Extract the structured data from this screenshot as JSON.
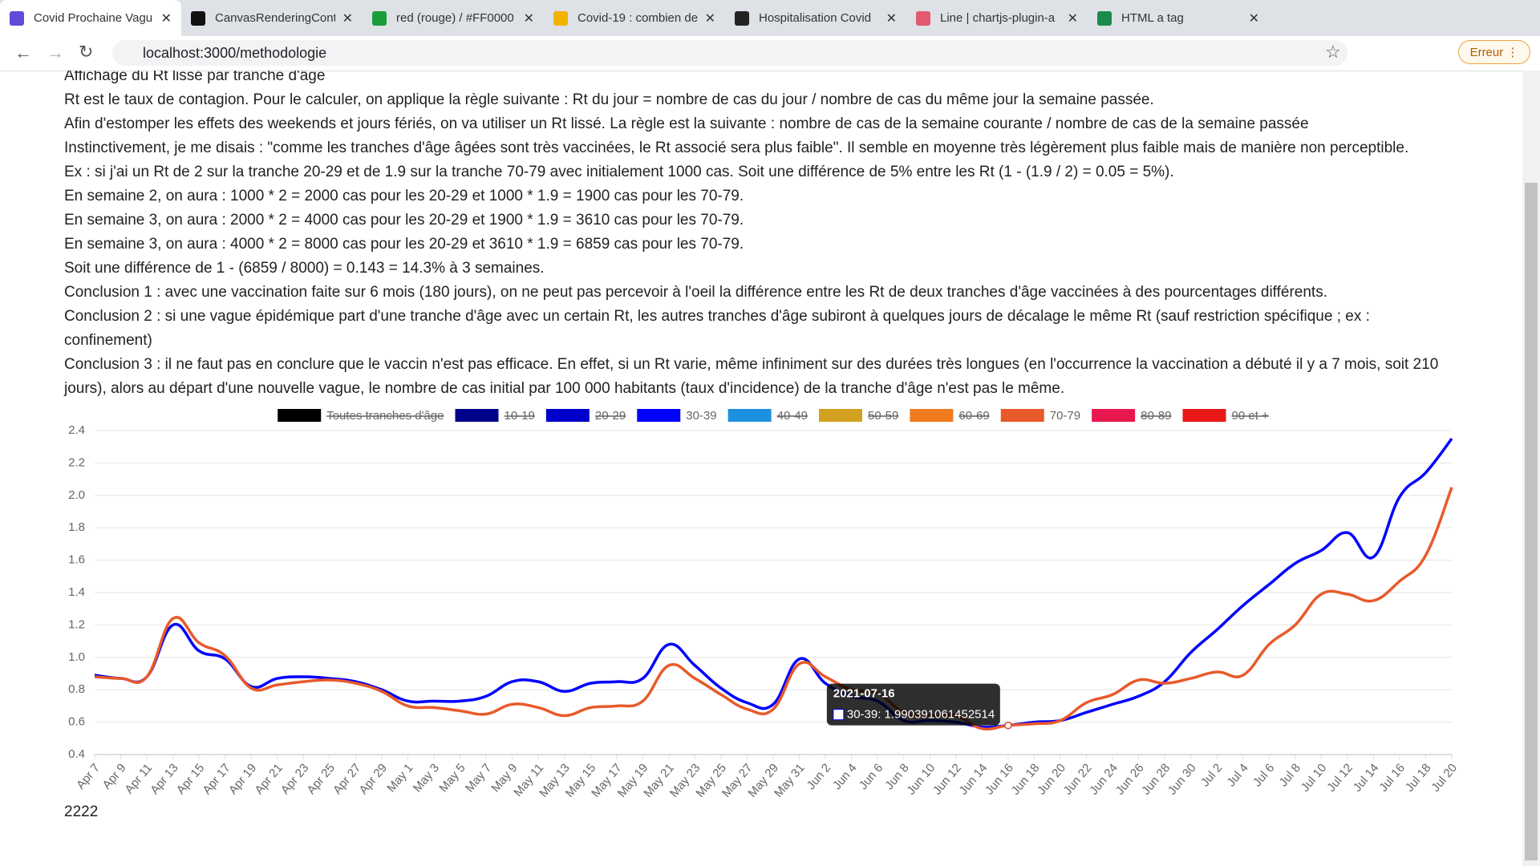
{
  "tabs": [
    "Covid Prochaine Vagu",
    "CanvasRenderingCont",
    "red (rouge) / #FF0000",
    "Covid-19 : combien de",
    "Hospitalisation Covid",
    "Line | chartjs-plugin-a",
    "HTML a tag"
  ],
  "address": "localhost:3000/methodologie",
  "profile_button": "Erreur",
  "paragraphs": [
    "Affichage du Rt lissé par tranche d'âge",
    "Rt est le taux de contagion. Pour le calculer, on applique la règle suivante : Rt du jour = nombre de cas du jour / nombre de cas du même jour la semaine passée.",
    "Afin d'estomper les effets des weekends et jours fériés, on va utiliser un Rt lissé. La règle est la suivante : nombre de cas de la semaine courante / nombre de cas de la semaine passée",
    "Instinctivement, je me disais : \"comme les tranches d'âge âgées sont très vaccinées, le Rt associé sera plus faible\". Il semble en moyenne très légèrement plus faible mais de manière non perceptible.",
    "Ex : si j'ai un Rt de 2 sur la tranche 20-29 et de 1.9 sur la tranche 70-79 avec initialement 1000 cas. Soit une différence de 5% entre les Rt (1 - (1.9 / 2) = 0.05 = 5%).",
    "En semaine 2, on aura : 1000 * 2 = 2000 cas pour les 20-29 et 1000 * 1.9 = 1900 cas pour les 70-79.",
    "En semaine 3, on aura : 2000 * 2 = 4000 cas pour les 20-29 et 1900 * 1.9 = 3610 cas pour les 70-79.",
    "En semaine 3, on aura : 4000 * 2 = 8000 cas pour les 20-29 et 3610 * 1.9 = 6859 cas pour les 70-79.",
    "Soit une différence de 1 - (6859 / 8000) = 0.143 = 14.3% à 3 semaines.",
    "Conclusion 1 : avec une vaccination faite sur 6 mois (180 jours), on ne peut pas percevoir à l'oeil la différence entre les Rt de deux tranches d'âge vaccinées à des pourcentages différents.",
    "Conclusion 2 : si une vague épidémique part d'une tranche d'âge avec un certain Rt, les autres tranches d'âge subiront à quelques jours de décalage le même Rt (sauf restriction spécifique ; ex : confinement)",
    "Conclusion 3 : il ne faut pas en conclure que le vaccin n'est pas efficace. En effet, si un Rt varie, même infiniment sur des durées très longues (en l'occurrence la vaccination a débuté il y a 7 mois, soit 210 jours), alors au départ d'une nouvelle vague, le nombre de cas initial par 100 000 habitants (taux d'incidence) de la tranche d'âge n'est pas le même."
  ],
  "footer": "2222",
  "chart_data": {
    "type": "line",
    "categories": [
      "Apr 7",
      "Apr 9",
      "Apr 11",
      "Apr 13",
      "Apr 15",
      "Apr 17",
      "Apr 19",
      "Apr 21",
      "Apr 23",
      "Apr 25",
      "Apr 27",
      "Apr 29",
      "May 1",
      "May 3",
      "May 5",
      "May 7",
      "May 9",
      "May 11",
      "May 13",
      "May 15",
      "May 17",
      "May 19",
      "May 21",
      "May 23",
      "May 25",
      "May 27",
      "May 29",
      "May 31",
      "Jun 2",
      "Jun 4",
      "Jun 6",
      "Jun 8",
      "Jun 10",
      "Jun 12",
      "Jun 14",
      "Jun 16",
      "Jun 18",
      "Jun 20",
      "Jun 22",
      "Jun 24",
      "Jun 26",
      "Jun 28",
      "Jun 30",
      "Jul 2",
      "Jul 4",
      "Jul 6",
      "Jul 8",
      "Jul 10",
      "Jul 12",
      "Jul 14",
      "Jul 16",
      "Jul 18",
      "Jul 20"
    ],
    "legend": [
      {
        "name": "Toutes tranches d'âge",
        "color": "#000000",
        "hidden": true
      },
      {
        "name": "10-19",
        "color": "#00008b",
        "hidden": true
      },
      {
        "name": "20-29",
        "color": "#0000cd",
        "hidden": true
      },
      {
        "name": "30-39",
        "color": "#0000ff",
        "hidden": false
      },
      {
        "name": "40-49",
        "color": "#1e90e0",
        "hidden": true
      },
      {
        "name": "50-59",
        "color": "#d4a020",
        "hidden": true
      },
      {
        "name": "60-69",
        "color": "#f07a1e",
        "hidden": true
      },
      {
        "name": "70-79",
        "color": "#e85a2a",
        "hidden": false
      },
      {
        "name": "80-89",
        "color": "#e8184e",
        "hidden": true
      },
      {
        "name": "90 et +",
        "color": "#e81818",
        "hidden": true
      }
    ],
    "series": [
      {
        "name": "30-39",
        "color": "#0000ff",
        "values": [
          0.89,
          0.87,
          0.88,
          1.2,
          1.04,
          0.99,
          0.82,
          0.87,
          0.88,
          0.87,
          0.85,
          0.8,
          0.73,
          0.73,
          0.73,
          0.76,
          0.85,
          0.85,
          0.79,
          0.84,
          0.85,
          0.87,
          1.08,
          0.95,
          0.81,
          0.72,
          0.71,
          0.99,
          0.84,
          0.76,
          0.73,
          0.61,
          0.61,
          0.6,
          0.57,
          0.58,
          0.6,
          0.61,
          0.66,
          0.71,
          0.76,
          0.85,
          1.03,
          1.17,
          1.32,
          1.45,
          1.58,
          1.66,
          1.77,
          1.62,
          1.99,
          2.14,
          2.35
        ]
      },
      {
        "name": "70-79",
        "color": "#e85a2a",
        "values": [
          0.88,
          0.87,
          0.88,
          1.24,
          1.09,
          1.01,
          0.81,
          0.83,
          0.85,
          0.86,
          0.84,
          0.79,
          0.7,
          0.69,
          0.67,
          0.65,
          0.71,
          0.69,
          0.64,
          0.69,
          0.7,
          0.73,
          0.95,
          0.87,
          0.77,
          0.68,
          0.68,
          0.96,
          0.88,
          0.8,
          0.78,
          0.66,
          0.64,
          0.64,
          0.56,
          0.58,
          0.59,
          0.61,
          0.72,
          0.77,
          0.86,
          0.84,
          0.87,
          0.91,
          0.89,
          1.08,
          1.2,
          1.39,
          1.39,
          1.35,
          1.47,
          1.63,
          2.05
        ]
      }
    ],
    "ylim": [
      0.4,
      2.4
    ],
    "yticks": [
      0.4,
      0.6,
      0.8,
      {
        "value": 1,
        "label": "1.0"
      },
      1.2,
      1.4,
      1.6,
      1.8,
      {
        "value": 2,
        "label": "2.0"
      },
      2.2,
      2.4
    ],
    "grid": true,
    "tooltip": {
      "title": "2021-07-16",
      "label": "30-39: 1.990391061452514"
    }
  }
}
